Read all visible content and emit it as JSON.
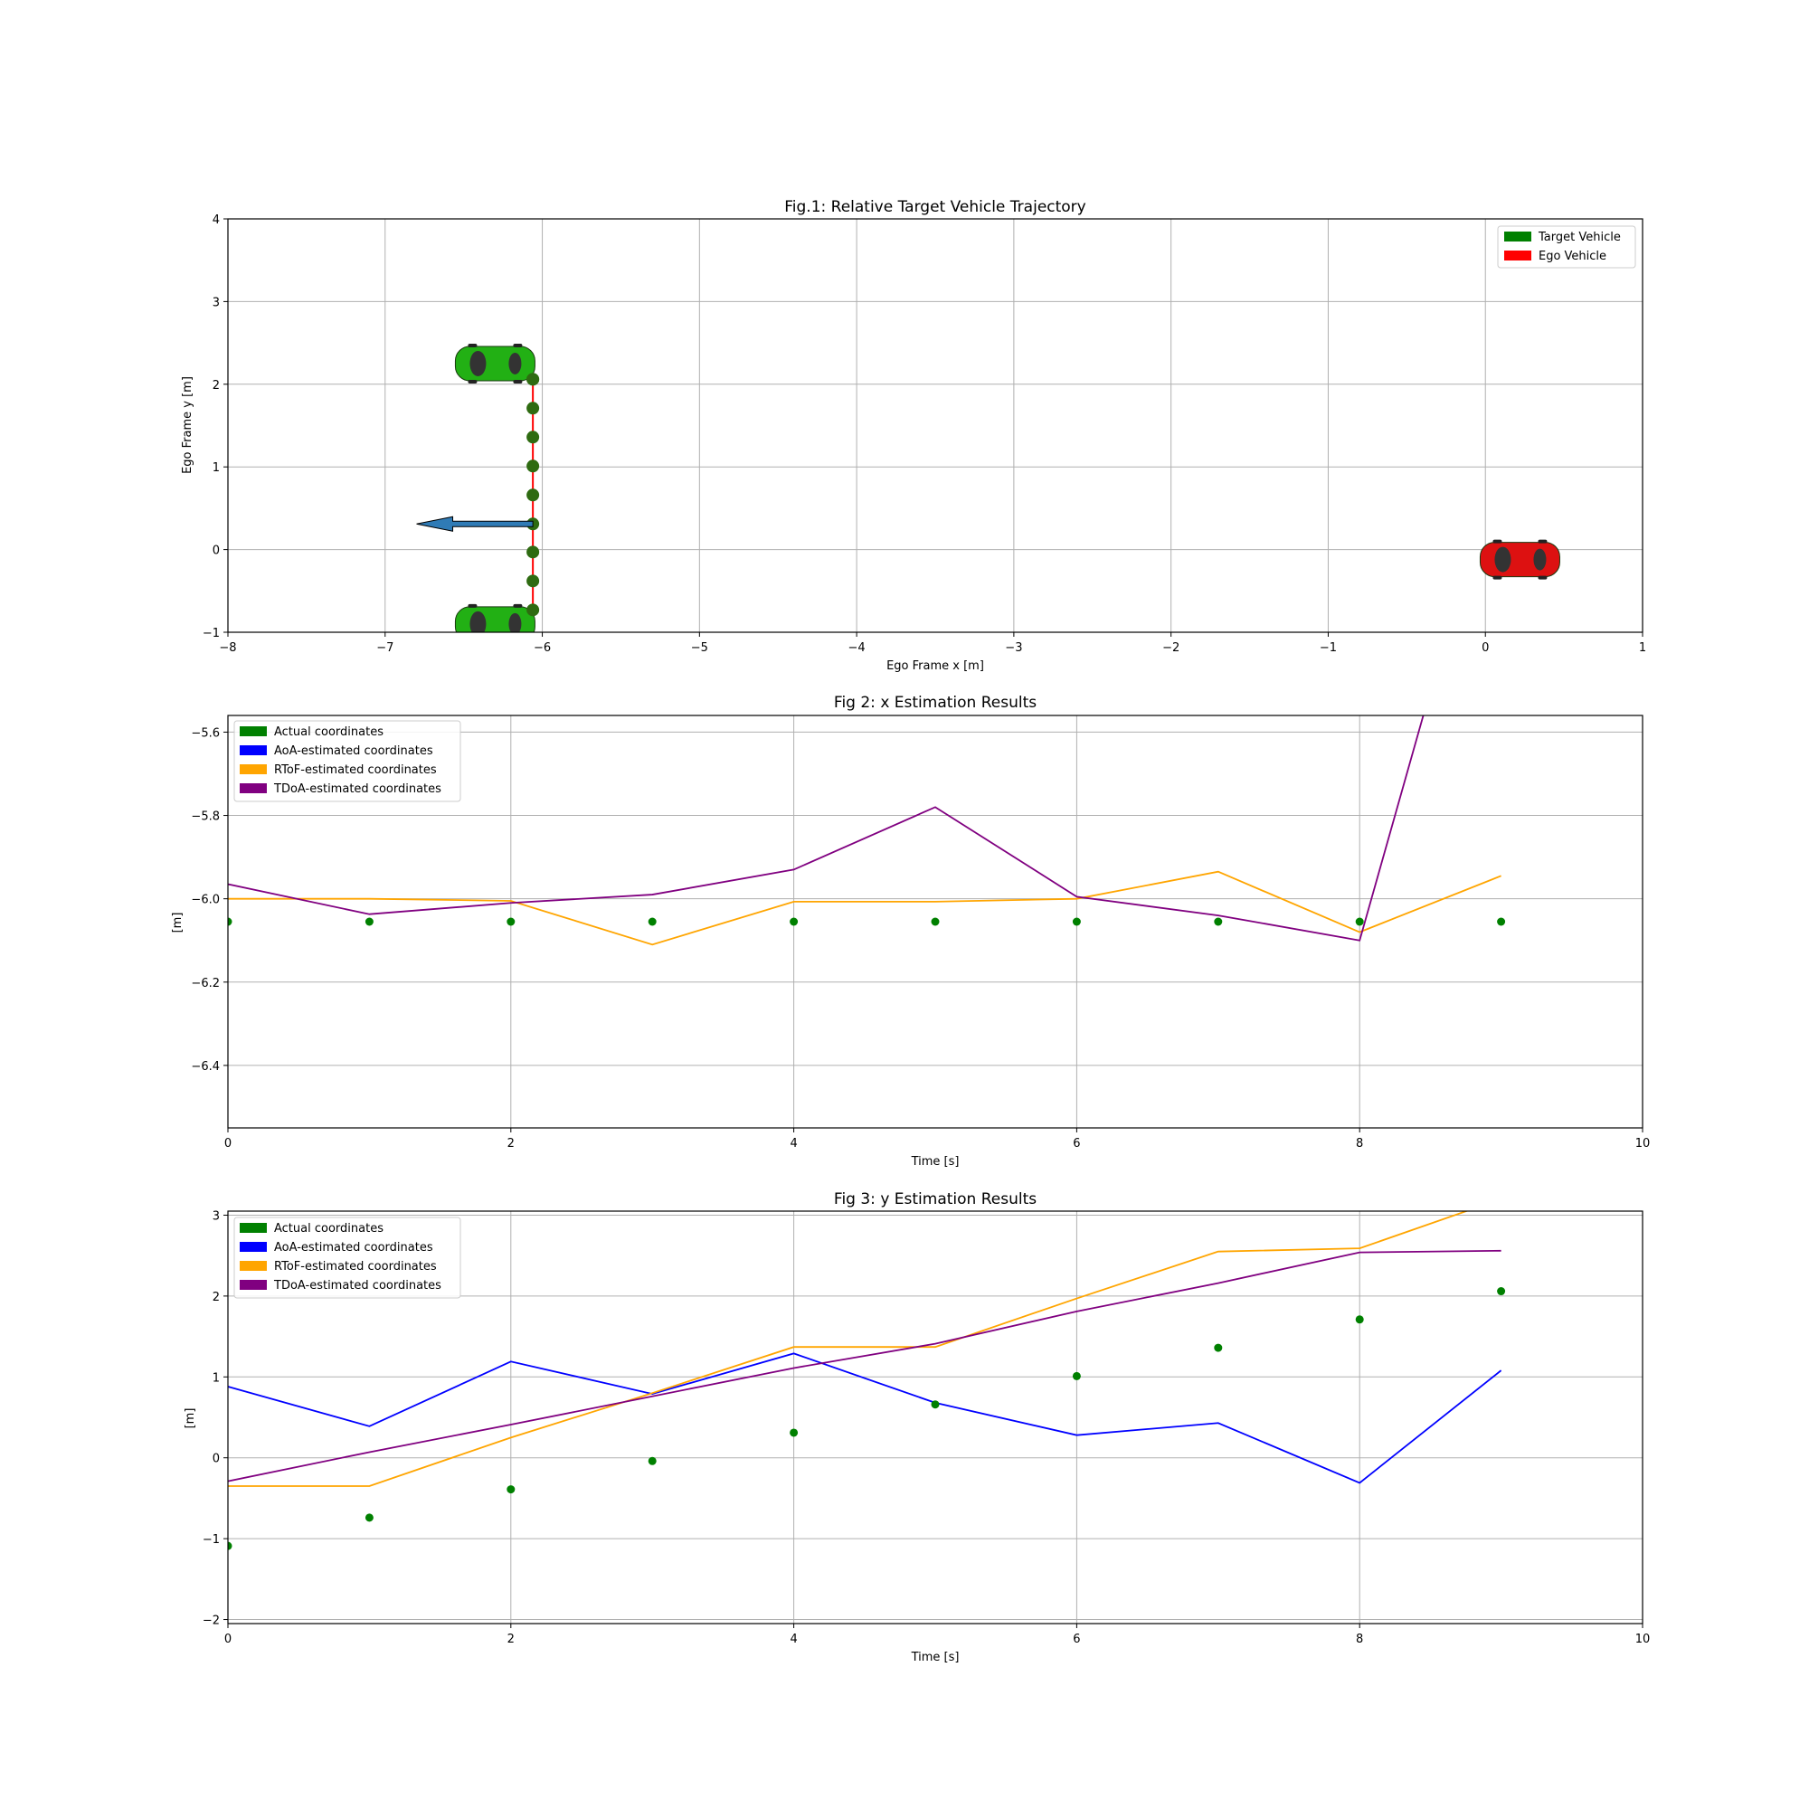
{
  "chart_data": [
    {
      "type": "scatter",
      "title": "Fig.1: Relative Target Vehicle Trajectory",
      "xlabel": "Ego Frame x [m]",
      "ylabel": "Ego Frame y [m]",
      "xlim": [
        -8,
        1
      ],
      "ylim": [
        -1,
        4
      ],
      "xticks": [
        -8,
        -7,
        -6,
        -5,
        -4,
        -3,
        -2,
        -1,
        0,
        1
      ],
      "yticks": [
        -1,
        0,
        1,
        2,
        3,
        4
      ],
      "grid": true,
      "legend_position": "top-right",
      "legend": [
        {
          "label": "Target Vehicle",
          "color": "#008000"
        },
        {
          "label": "Ego Vehicle",
          "color": "#ff0000"
        }
      ],
      "trajectory_points": {
        "color": "#2e6b11",
        "x": [
          -6.06,
          -6.06,
          -6.06,
          -6.06,
          -6.06,
          -6.06,
          -6.06,
          -6.06,
          -6.06,
          -6.06
        ],
        "y": [
          -0.73,
          -0.38,
          -0.03,
          0.31,
          0.66,
          1.01,
          1.36,
          1.71,
          2.06,
          2.06
        ]
      },
      "trajectory_line_color": "#ff0000",
      "direction_arrow": {
        "x_from": -6.06,
        "x_to": -6.8,
        "y": 0.31,
        "color": "#2f7bb6"
      },
      "target_vehicles": [
        {
          "x": -6.3,
          "y": 2.25,
          "color": "#22b014"
        },
        {
          "x": -6.3,
          "y": -0.9,
          "color": "#22b014"
        }
      ],
      "ego_vehicle": {
        "x": 0.22,
        "y": -0.12,
        "color": "#dd1111"
      }
    },
    {
      "type": "line",
      "title": "Fig 2: x Estimation Results",
      "xlabel": "Time [s]",
      "ylabel": "[m]",
      "xlim": [
        0,
        10
      ],
      "ylim": [
        -6.55,
        -5.56
      ],
      "xticks": [
        0,
        2,
        4,
        6,
        8,
        10
      ],
      "yticks": [
        -6.4,
        -6.2,
        -6.0,
        -5.8,
        -5.6
      ],
      "grid": true,
      "legend_position": "top-left",
      "legend": [
        {
          "label": "Actual coordinates",
          "color": "#008000"
        },
        {
          "label": "AoA-estimated coordinates",
          "color": "#0000ff"
        },
        {
          "label": "RToF-estimated coordinates",
          "color": "#ffa500"
        },
        {
          "label": "TDoA-estimated coordinates",
          "color": "#800080"
        }
      ],
      "x": [
        0,
        1,
        2,
        3,
        4,
        5,
        6,
        7,
        8,
        9
      ],
      "series": [
        {
          "name": "Actual coordinates",
          "kind": "scatter",
          "color": "#008000",
          "values": [
            -6.055,
            -6.055,
            -6.055,
            -6.055,
            -6.055,
            -6.055,
            -6.055,
            -6.055,
            -6.055,
            -6.055
          ]
        },
        {
          "name": "RToF-estimated coordinates",
          "kind": "line",
          "color": "#ffa500",
          "values": [
            -6.0,
            -6.0,
            -6.005,
            -6.11,
            -6.007,
            -6.007,
            -6.0,
            -5.935,
            -6.08,
            -5.945
          ]
        },
        {
          "name": "TDoA-estimated coordinates",
          "kind": "line",
          "color": "#800080",
          "values": [
            -5.965,
            -6.037,
            -6.01,
            -5.99,
            -5.93,
            -5.78,
            -5.995,
            -6.04,
            -6.1,
            -4.9
          ]
        }
      ]
    },
    {
      "type": "line",
      "title": "Fig 3: y Estimation Results",
      "xlabel": "Time [s]",
      "ylabel": "[m]",
      "xlim": [
        0,
        10
      ],
      "ylim": [
        -2.05,
        3.05
      ],
      "xticks": [
        0,
        2,
        4,
        6,
        8,
        10
      ],
      "yticks": [
        -2,
        -1,
        0,
        1,
        2,
        3
      ],
      "grid": true,
      "legend_position": "top-left",
      "legend": [
        {
          "label": "Actual coordinates",
          "color": "#008000"
        },
        {
          "label": "AoA-estimated coordinates",
          "color": "#0000ff"
        },
        {
          "label": "RToF-estimated coordinates",
          "color": "#ffa500"
        },
        {
          "label": "TDoA-estimated coordinates",
          "color": "#800080"
        }
      ],
      "x": [
        0,
        1,
        2,
        3,
        4,
        5,
        6,
        7,
        8,
        9
      ],
      "series": [
        {
          "name": "Actual coordinates",
          "kind": "scatter",
          "color": "#008000",
          "values": [
            -1.09,
            -0.74,
            -0.39,
            -0.04,
            0.31,
            0.66,
            1.01,
            1.36,
            1.71,
            2.06
          ]
        },
        {
          "name": "AoA-estimated coordinates",
          "kind": "line",
          "color": "#0000ff",
          "values": [
            0.88,
            0.39,
            1.19,
            0.79,
            1.29,
            0.68,
            0.28,
            0.43,
            -0.31,
            1.08
          ]
        },
        {
          "name": "RToF-estimated coordinates",
          "kind": "line",
          "color": "#ffa500",
          "values": [
            -0.35,
            -0.35,
            0.25,
            0.8,
            1.37,
            1.37,
            1.97,
            2.55,
            2.59,
            3.2
          ]
        },
        {
          "name": "TDoA-estimated coordinates",
          "kind": "line",
          "color": "#800080",
          "values": [
            -0.29,
            0.07,
            0.41,
            0.76,
            1.11,
            1.41,
            1.81,
            2.16,
            2.54,
            2.56
          ]
        }
      ]
    }
  ]
}
